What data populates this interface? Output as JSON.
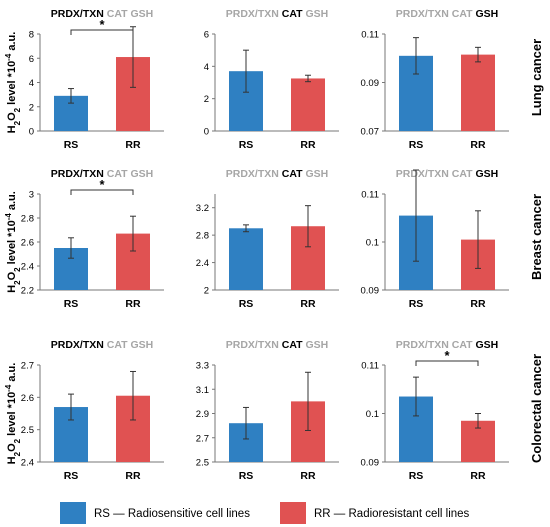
{
  "figure": {
    "y_axis_label": {
      "main": "H",
      "sub": "2",
      "mid": "O",
      "sub2": "2",
      "rest": " level *10",
      "sup": "-4",
      "end": " a.u."
    },
    "row_labels": [
      "Lung cancer",
      "Breast cancer",
      "Colorectal cancer"
    ],
    "title_parts": [
      "PRDX/TXN",
      "CAT",
      "GSH"
    ],
    "significance_marker": "*",
    "legend": [
      {
        "key": "RS",
        "label": "RS — Radiosensitive cell lines",
        "color": "#2f80c2"
      },
      {
        "key": "RR",
        "label": "RR — Radioresistant cell lines",
        "color": "#e05252"
      }
    ]
  },
  "colors": {
    "RS": "#2f80c2",
    "RR": "#e05252",
    "title_active": "#000000",
    "title_inactive": "#a6a6a6"
  },
  "chart_data": [
    {
      "type": "bar",
      "row": "Lung cancer",
      "highlight": "PRDX/TXN",
      "categories": [
        "RS",
        "RR"
      ],
      "values": [
        2.9,
        6.1
      ],
      "errors": [
        0.6,
        2.5
      ],
      "ylim": [
        0,
        8
      ],
      "yticks": [
        "0",
        "2",
        "4",
        "6",
        "8"
      ],
      "significant": true
    },
    {
      "type": "bar",
      "row": "Lung cancer",
      "highlight": "CAT",
      "categories": [
        "RS",
        "RR"
      ],
      "values": [
        3.7,
        3.25
      ],
      "errors": [
        1.3,
        0.2
      ],
      "ylim": [
        0,
        6
      ],
      "yticks": [
        "0",
        "2",
        "4",
        "6"
      ],
      "significant": false
    },
    {
      "type": "bar",
      "row": "Lung cancer",
      "highlight": "GSH",
      "categories": [
        "RS",
        "RR"
      ],
      "values": [
        0.101,
        0.1015
      ],
      "errors": [
        0.0075,
        0.003
      ],
      "ylim": [
        0.07,
        0.11
      ],
      "yticks": [
        "0.07",
        "0.09",
        "0.11"
      ],
      "significant": false
    },
    {
      "type": "bar",
      "row": "Breast cancer",
      "highlight": "PRDX/TXN",
      "categories": [
        "RS",
        "RR"
      ],
      "values": [
        2.55,
        2.67
      ],
      "errors": [
        0.085,
        0.145
      ],
      "ylim": [
        2.2,
        3
      ],
      "yticks": [
        "2.2",
        "2.4",
        "2.6",
        "2.8",
        "3"
      ],
      "significant": true
    },
    {
      "type": "bar",
      "row": "Breast cancer",
      "highlight": "CAT",
      "categories": [
        "RS",
        "RR"
      ],
      "values": [
        2.9,
        2.93
      ],
      "errors": [
        0.05,
        0.3
      ],
      "ylim": [
        2,
        3.4
      ],
      "yticks": [
        "2",
        "2.4",
        "2.8",
        "3.2"
      ],
      "significant": false
    },
    {
      "type": "bar",
      "row": "Breast cancer",
      "highlight": "GSH",
      "categories": [
        "RS",
        "RR"
      ],
      "values": [
        0.1055,
        0.1005
      ],
      "errors": [
        0.0095,
        0.006
      ],
      "ylim": [
        0.09,
        0.11
      ],
      "yticks": [
        "0.09",
        "0.1",
        "0.11"
      ],
      "significant": false
    },
    {
      "type": "bar",
      "row": "Colorectal cancer",
      "highlight": "PRDX/TXN",
      "categories": [
        "RS",
        "RR"
      ],
      "values": [
        2.57,
        2.605
      ],
      "errors": [
        0.04,
        0.075
      ],
      "ylim": [
        2.4,
        2.7
      ],
      "yticks": [
        "2.4",
        "2.5",
        "2.6",
        "2.7"
      ],
      "significant": false
    },
    {
      "type": "bar",
      "row": "Colorectal cancer",
      "highlight": "CAT",
      "categories": [
        "RS",
        "RR"
      ],
      "values": [
        2.82,
        3.0
      ],
      "errors": [
        0.13,
        0.24
      ],
      "ylim": [
        2.5,
        3.3
      ],
      "yticks": [
        "2.5",
        "2.7",
        "2.9",
        "3.1",
        "3.3"
      ],
      "significant": false
    },
    {
      "type": "bar",
      "row": "Colorectal cancer",
      "highlight": "GSH",
      "categories": [
        "RS",
        "RR"
      ],
      "values": [
        0.1035,
        0.0985
      ],
      "errors": [
        0.004,
        0.0015
      ],
      "ylim": [
        0.09,
        0.11
      ],
      "yticks": [
        "0.09",
        "0.1",
        "0.11"
      ],
      "significant": true
    }
  ]
}
